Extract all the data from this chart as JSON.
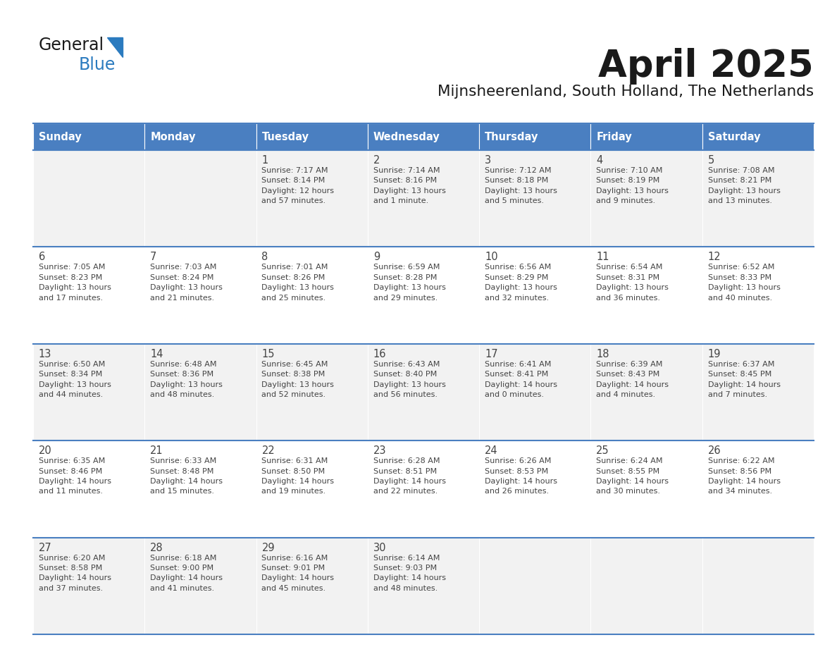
{
  "title": "April 2025",
  "subtitle": "Mijnsheerenland, South Holland, The Netherlands",
  "header_color": "#4A7FC1",
  "header_text_color": "#FFFFFF",
  "cell_bg_week1": "#F2F2F2",
  "cell_bg_week2": "#FFFFFF",
  "cell_bg_week3": "#F2F2F2",
  "cell_bg_week4": "#FFFFFF",
  "cell_bg_week5": "#F2F2F2",
  "border_color": "#4A7FC1",
  "text_color": "#444444",
  "days_of_week": [
    "Sunday",
    "Monday",
    "Tuesday",
    "Wednesday",
    "Thursday",
    "Friday",
    "Saturday"
  ],
  "weeks": [
    [
      {
        "day": "",
        "info": ""
      },
      {
        "day": "",
        "info": ""
      },
      {
        "day": "1",
        "info": "Sunrise: 7:17 AM\nSunset: 8:14 PM\nDaylight: 12 hours\nand 57 minutes."
      },
      {
        "day": "2",
        "info": "Sunrise: 7:14 AM\nSunset: 8:16 PM\nDaylight: 13 hours\nand 1 minute."
      },
      {
        "day": "3",
        "info": "Sunrise: 7:12 AM\nSunset: 8:18 PM\nDaylight: 13 hours\nand 5 minutes."
      },
      {
        "day": "4",
        "info": "Sunrise: 7:10 AM\nSunset: 8:19 PM\nDaylight: 13 hours\nand 9 minutes."
      },
      {
        "day": "5",
        "info": "Sunrise: 7:08 AM\nSunset: 8:21 PM\nDaylight: 13 hours\nand 13 minutes."
      }
    ],
    [
      {
        "day": "6",
        "info": "Sunrise: 7:05 AM\nSunset: 8:23 PM\nDaylight: 13 hours\nand 17 minutes."
      },
      {
        "day": "7",
        "info": "Sunrise: 7:03 AM\nSunset: 8:24 PM\nDaylight: 13 hours\nand 21 minutes."
      },
      {
        "day": "8",
        "info": "Sunrise: 7:01 AM\nSunset: 8:26 PM\nDaylight: 13 hours\nand 25 minutes."
      },
      {
        "day": "9",
        "info": "Sunrise: 6:59 AM\nSunset: 8:28 PM\nDaylight: 13 hours\nand 29 minutes."
      },
      {
        "day": "10",
        "info": "Sunrise: 6:56 AM\nSunset: 8:29 PM\nDaylight: 13 hours\nand 32 minutes."
      },
      {
        "day": "11",
        "info": "Sunrise: 6:54 AM\nSunset: 8:31 PM\nDaylight: 13 hours\nand 36 minutes."
      },
      {
        "day": "12",
        "info": "Sunrise: 6:52 AM\nSunset: 8:33 PM\nDaylight: 13 hours\nand 40 minutes."
      }
    ],
    [
      {
        "day": "13",
        "info": "Sunrise: 6:50 AM\nSunset: 8:34 PM\nDaylight: 13 hours\nand 44 minutes."
      },
      {
        "day": "14",
        "info": "Sunrise: 6:48 AM\nSunset: 8:36 PM\nDaylight: 13 hours\nand 48 minutes."
      },
      {
        "day": "15",
        "info": "Sunrise: 6:45 AM\nSunset: 8:38 PM\nDaylight: 13 hours\nand 52 minutes."
      },
      {
        "day": "16",
        "info": "Sunrise: 6:43 AM\nSunset: 8:40 PM\nDaylight: 13 hours\nand 56 minutes."
      },
      {
        "day": "17",
        "info": "Sunrise: 6:41 AM\nSunset: 8:41 PM\nDaylight: 14 hours\nand 0 minutes."
      },
      {
        "day": "18",
        "info": "Sunrise: 6:39 AM\nSunset: 8:43 PM\nDaylight: 14 hours\nand 4 minutes."
      },
      {
        "day": "19",
        "info": "Sunrise: 6:37 AM\nSunset: 8:45 PM\nDaylight: 14 hours\nand 7 minutes."
      }
    ],
    [
      {
        "day": "20",
        "info": "Sunrise: 6:35 AM\nSunset: 8:46 PM\nDaylight: 14 hours\nand 11 minutes."
      },
      {
        "day": "21",
        "info": "Sunrise: 6:33 AM\nSunset: 8:48 PM\nDaylight: 14 hours\nand 15 minutes."
      },
      {
        "day": "22",
        "info": "Sunrise: 6:31 AM\nSunset: 8:50 PM\nDaylight: 14 hours\nand 19 minutes."
      },
      {
        "day": "23",
        "info": "Sunrise: 6:28 AM\nSunset: 8:51 PM\nDaylight: 14 hours\nand 22 minutes."
      },
      {
        "day": "24",
        "info": "Sunrise: 6:26 AM\nSunset: 8:53 PM\nDaylight: 14 hours\nand 26 minutes."
      },
      {
        "day": "25",
        "info": "Sunrise: 6:24 AM\nSunset: 8:55 PM\nDaylight: 14 hours\nand 30 minutes."
      },
      {
        "day": "26",
        "info": "Sunrise: 6:22 AM\nSunset: 8:56 PM\nDaylight: 14 hours\nand 34 minutes."
      }
    ],
    [
      {
        "day": "27",
        "info": "Sunrise: 6:20 AM\nSunset: 8:58 PM\nDaylight: 14 hours\nand 37 minutes."
      },
      {
        "day": "28",
        "info": "Sunrise: 6:18 AM\nSunset: 9:00 PM\nDaylight: 14 hours\nand 41 minutes."
      },
      {
        "day": "29",
        "info": "Sunrise: 6:16 AM\nSunset: 9:01 PM\nDaylight: 14 hours\nand 45 minutes."
      },
      {
        "day": "30",
        "info": "Sunrise: 6:14 AM\nSunset: 9:03 PM\nDaylight: 14 hours\nand 48 minutes."
      },
      {
        "day": "",
        "info": ""
      },
      {
        "day": "",
        "info": ""
      },
      {
        "day": "",
        "info": ""
      }
    ]
  ],
  "logo_general_color": "#1a1a1a",
  "logo_blue_color": "#2B7BBF",
  "logo_triangle_color": "#2B7BBF"
}
